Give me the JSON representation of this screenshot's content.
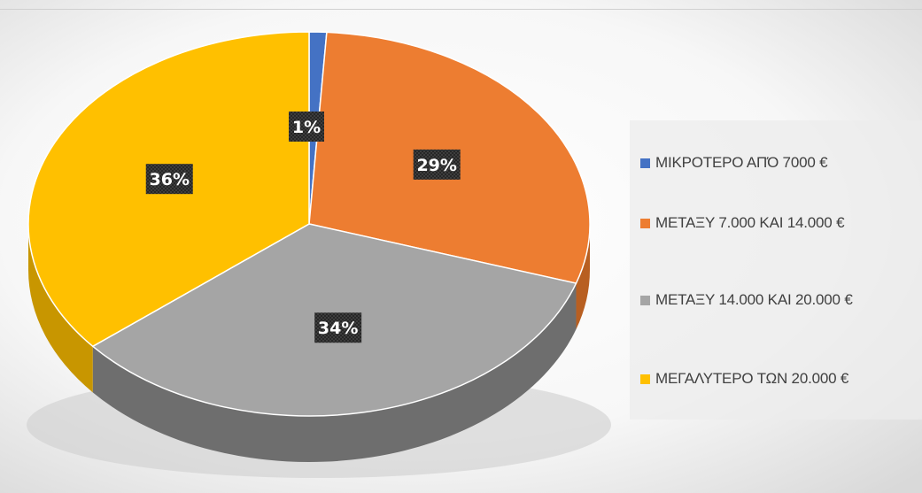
{
  "chart_data": {
    "type": "pie",
    "title": "",
    "legend_position": "right",
    "slices": [
      {
        "label": "ΜΙΚΡΟΤΕΡΟ ΑΠΌ 7000 €",
        "value": 1,
        "display": "1%",
        "color": "#4472C4",
        "side_color": "#2F5597"
      },
      {
        "label": "ΜΕΤΑΞΥ 7.000 ΚΑΙ 14.000 €",
        "value": 29,
        "display": "29%",
        "color": "#ED7D31",
        "side_color": "#B85F21"
      },
      {
        "label": "ΜΕΤΑΞΥ 14.000 ΚΑΙ 20.000 €",
        "value": 34,
        "display": "34%",
        "color": "#A5A5A5",
        "side_color": "#6E6E6E"
      },
      {
        "label": "ΜΕΓΑΛΥΤΕΡΟ ΤΩΝ 20.000 €",
        "value": 36,
        "display": "36%",
        "color": "#FFC000",
        "side_color": "#C89600"
      }
    ]
  }
}
